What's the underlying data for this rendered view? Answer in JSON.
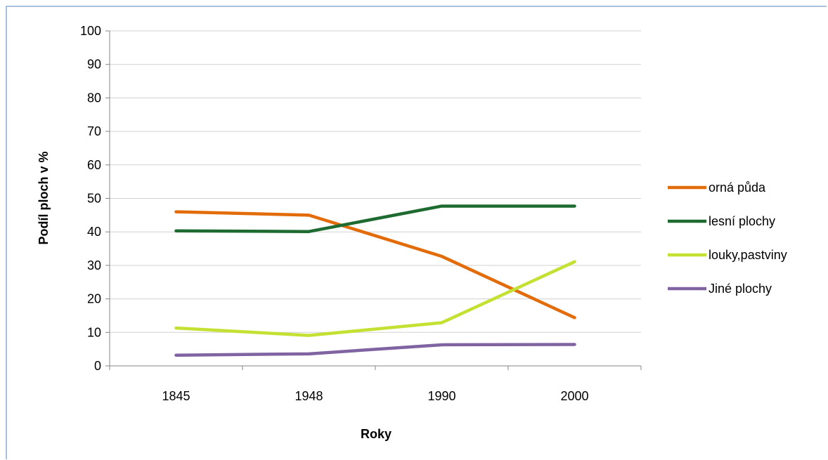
{
  "chart_data": {
    "type": "line",
    "categories": [
      "1845",
      "1948",
      "1990",
      "2000"
    ],
    "series": [
      {
        "name": "orná půda",
        "color": "#e36c0a",
        "values": [
          46,
          45,
          32.7,
          14.4
        ]
      },
      {
        "name": "lesní plochy",
        "color": "#1e6b32",
        "values": [
          40.3,
          40.1,
          47.7,
          47.7
        ]
      },
      {
        "name": "louky,pastviny",
        "color": "#c3e132",
        "values": [
          11.3,
          9.1,
          12.9,
          31.1
        ]
      },
      {
        "name": "Jiné plochy",
        "color": "#8064a2",
        "values": [
          3.2,
          3.6,
          6.3,
          6.4
        ]
      }
    ],
    "xlabel": "Roky",
    "ylabel": "Podíl ploch v %",
    "ylim": [
      0,
      100
    ],
    "yticks": [
      0,
      10,
      20,
      30,
      40,
      50,
      60,
      70,
      80,
      90,
      100
    ],
    "grid": true,
    "legend_position": "right"
  }
}
